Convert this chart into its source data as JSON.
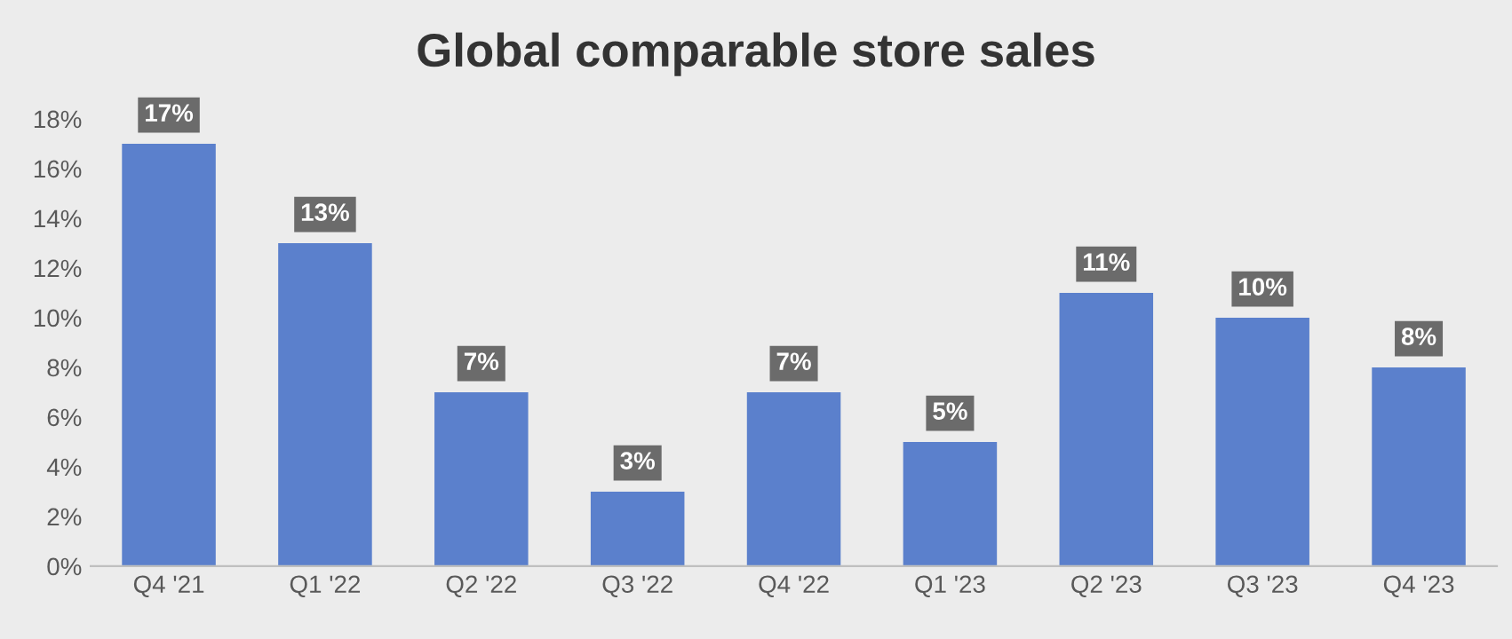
{
  "chart_data": {
    "type": "bar",
    "title": "Global comparable store sales",
    "categories": [
      "Q4 '21",
      "Q1 '22",
      "Q2 '22",
      "Q3 '22",
      "Q4 '22",
      "Q1 '23",
      "Q2 '23",
      "Q3 '23",
      "Q4 '23"
    ],
    "values": [
      17,
      13,
      7,
      3,
      7,
      5,
      11,
      10,
      8
    ],
    "value_labels": [
      "17%",
      "13%",
      "7%",
      "3%",
      "7%",
      "5%",
      "11%",
      "10%",
      "8%"
    ],
    "color": "#5b80cc",
    "ylim": [
      0,
      18
    ],
    "yticks": [
      {
        "value": 0,
        "label": "0%"
      },
      {
        "value": 2,
        "label": "2%"
      },
      {
        "value": 4,
        "label": "4%"
      },
      {
        "value": 6,
        "label": "6%"
      },
      {
        "value": 8,
        "label": "8%"
      },
      {
        "value": 10,
        "label": "10%"
      },
      {
        "value": 12,
        "label": "12%"
      },
      {
        "value": 14,
        "label": "14%"
      },
      {
        "value": 16,
        "label": "16%"
      },
      {
        "value": 18,
        "label": "18%"
      }
    ],
    "grid": false
  }
}
